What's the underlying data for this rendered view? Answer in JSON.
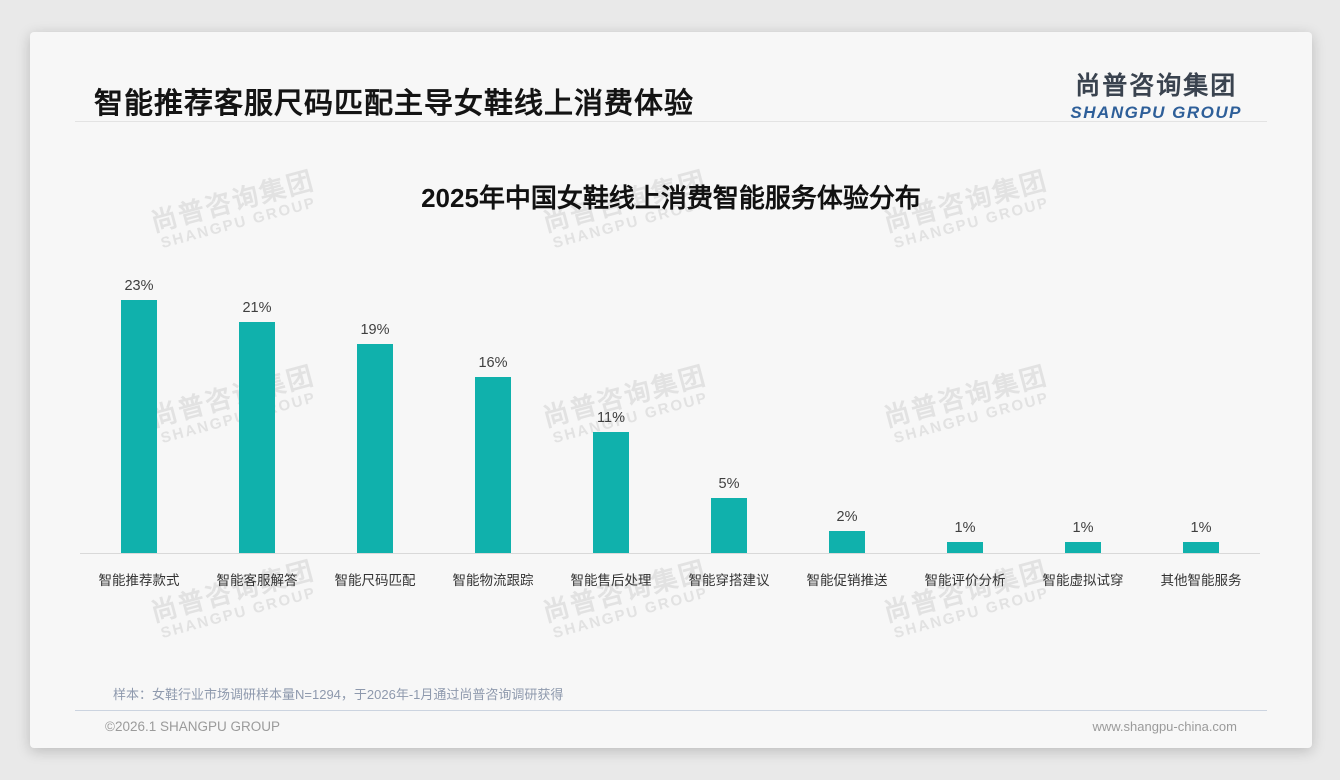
{
  "page": {
    "header": {
      "title": "智能推荐客服尺码匹配主导女鞋线上消费体验"
    },
    "logo": {
      "cn": "尚普咨询集团",
      "en": "SHANGPU GROUP"
    },
    "watermark": {
      "cn": "尚普咨询集团",
      "en": "SHANGPU GROUP"
    },
    "footnote": "样本：女鞋行业市场调研样本量N=1294，于2026年-1月通过尚普咨询调研获得",
    "footer": {
      "copyright": "©2026.1 SHANGPU GROUP",
      "website": "www.shangpu-china.com"
    }
  },
  "chart_data": {
    "type": "bar",
    "title": "2025年中国女鞋线上消费智能服务体验分布",
    "categories": [
      "智能推荐款式",
      "智能客服解答",
      "智能尺码匹配",
      "智能物流跟踪",
      "智能售后处理",
      "智能穿搭建议",
      "智能促销推送",
      "智能评价分析",
      "智能虚拟试穿",
      "其他智能服务"
    ],
    "values": [
      23,
      21,
      19,
      16,
      11,
      5,
      2,
      1,
      1,
      1
    ],
    "value_labels": [
      "23%",
      "21%",
      "19%",
      "16%",
      "11%",
      "5%",
      "2%",
      "1%",
      "1%",
      "1%"
    ],
    "unit": "%",
    "ylim": [
      0,
      25
    ],
    "grid": false,
    "legend": false,
    "bar_color": "#10b1ac"
  },
  "colors": {
    "bar": "#10b1ac",
    "logo_blue": "#2e5f99",
    "logo_dark": "#3a434f",
    "card_bg": "#f7f7f7",
    "page_bg": "#e9e9e9",
    "footnote": "#8e99ad"
  }
}
